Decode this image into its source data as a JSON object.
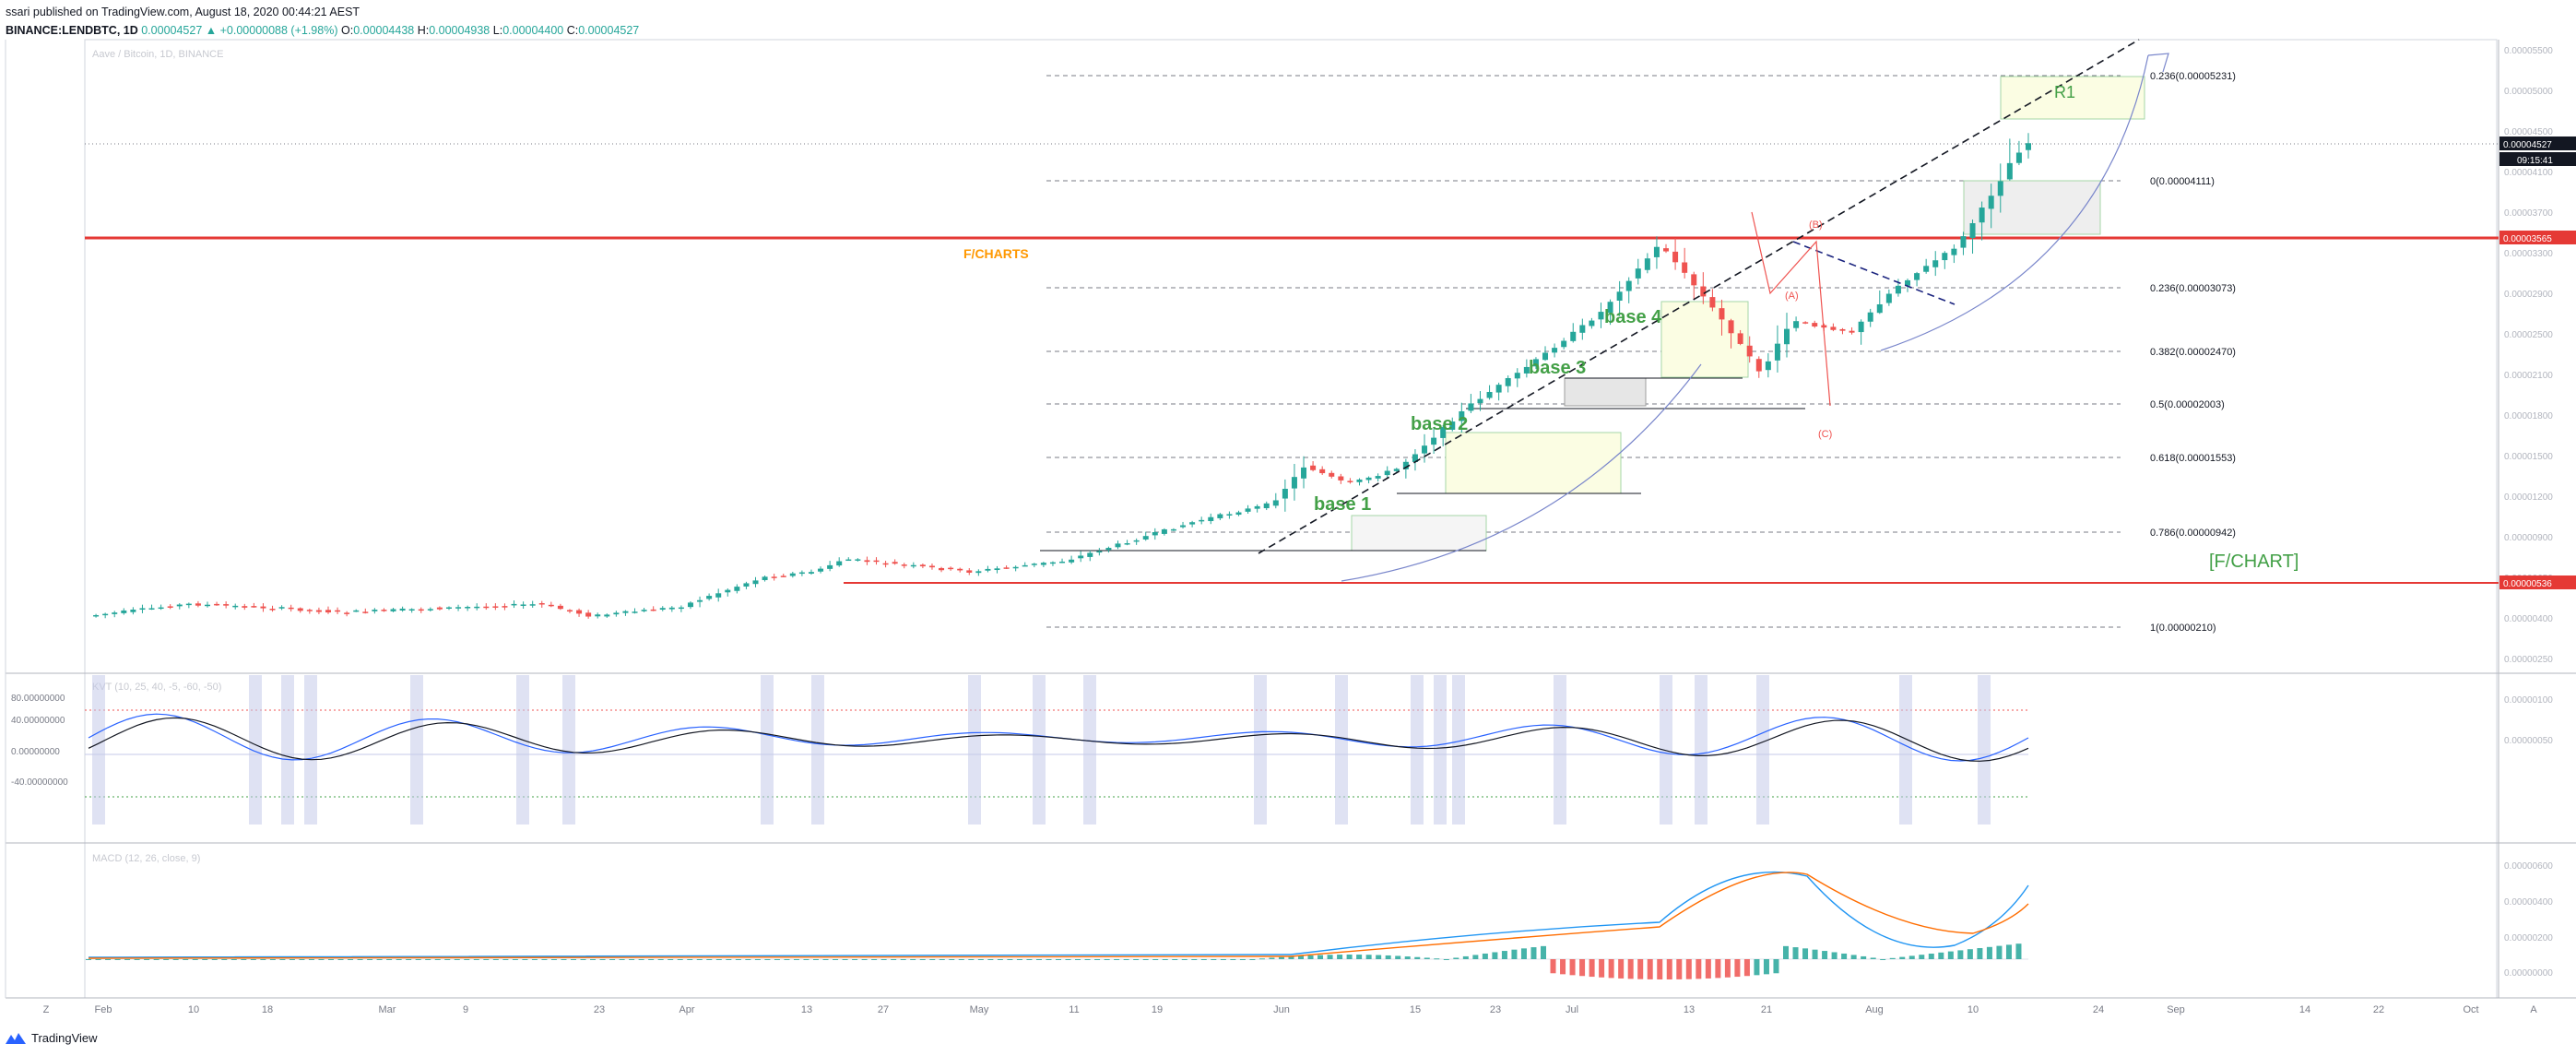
{
  "header": {
    "line1": "ssari published on TradingView.com, August 18, 2020 00:44:21 AEST",
    "symbol": "BINANCE:LENDBTC, 1D",
    "last": "0.00004527",
    "change": "▲ +0.00000088 (+1.98%)",
    "o_label": "O:",
    "o": "0.00004438",
    "h_label": "H:",
    "h": "0.00004938",
    "l_label": "L:",
    "l": "0.00004400",
    "c_label": "C:",
    "c": "0.00004527"
  },
  "footer": {
    "brand": "TradingView",
    "tz": "Z",
    "auto": "A"
  },
  "colors": {
    "up": "#26a69a",
    "down": "#ef5350",
    "support": "#e53935",
    "accent": "#2962ff",
    "fchart": "#ff9800",
    "base": "#43a047"
  },
  "chart_data": {
    "type": "candlestick",
    "title": "Aave / Bitcoin, 1D, BINANCE",
    "price_axis_ticks": [
      "0.00005500",
      "0.00005000",
      "0.00004500",
      "0.00004100",
      "0.00003700",
      "0.00003300",
      "0.00002900",
      "0.00002500",
      "0.00002100",
      "0.00001800",
      "0.00001500",
      "0.00001200",
      "0.00000900",
      "0.00000650",
      "0.00000400",
      "0.00000250",
      "0.00000100",
      "0.00000050"
    ],
    "last_price_label": "0.00004527",
    "countdown": "09:15:41",
    "support_upper_label": "0.00003565",
    "support_lower_label": "0.00000536",
    "x_ticks": [
      "Feb",
      "10",
      "18",
      "Mar",
      "9",
      "23",
      "Apr",
      "13",
      "27",
      "May",
      "11",
      "19",
      "Jun",
      "15",
      "23",
      "Jul",
      "13",
      "21",
      "Aug",
      "10",
      "24",
      "Sep",
      "14",
      "22",
      "Oct"
    ],
    "fib_levels": [
      {
        "label": "0.236(0.00005231)",
        "price": 5.231e-05
      },
      {
        "label": "0(0.00004111)",
        "price": 4.111e-05
      },
      {
        "label": "0.236(0.00003073)",
        "price": 3.073e-05
      },
      {
        "label": "0.382(0.00002470)",
        "price": 2.47e-05
      },
      {
        "label": "0.5(0.00002003)",
        "price": 2.003e-05
      },
      {
        "label": "0.618(0.00001553)",
        "price": 1.553e-05
      },
      {
        "label": "0.786(0.00000942)",
        "price": 9.42e-06
      },
      {
        "label": "1(0.00000210)",
        "price": 2.1e-06
      }
    ],
    "annotations": {
      "fcharts": "F/CHARTS",
      "fchart_box": "[F/CHART]",
      "base1": "base 1",
      "base2": "base 2",
      "base3": "base 3",
      "base4": "base 4",
      "r1": "R1",
      "wave_a": "(A)",
      "wave_b": "(B)",
      "wave_c": "(C)"
    },
    "osc_title": "KVT (10, 25, 40, -5, -60, -50)",
    "osc_ticks": [
      "80.00000000",
      "40.00000000",
      "0.00000000",
      "-40.00000000"
    ],
    "macd_title": "MACD (12, 26, close, 9)",
    "macd_ticks": [
      "0.00000600",
      "0.00000400",
      "0.00000200",
      "0.00000000"
    ]
  }
}
